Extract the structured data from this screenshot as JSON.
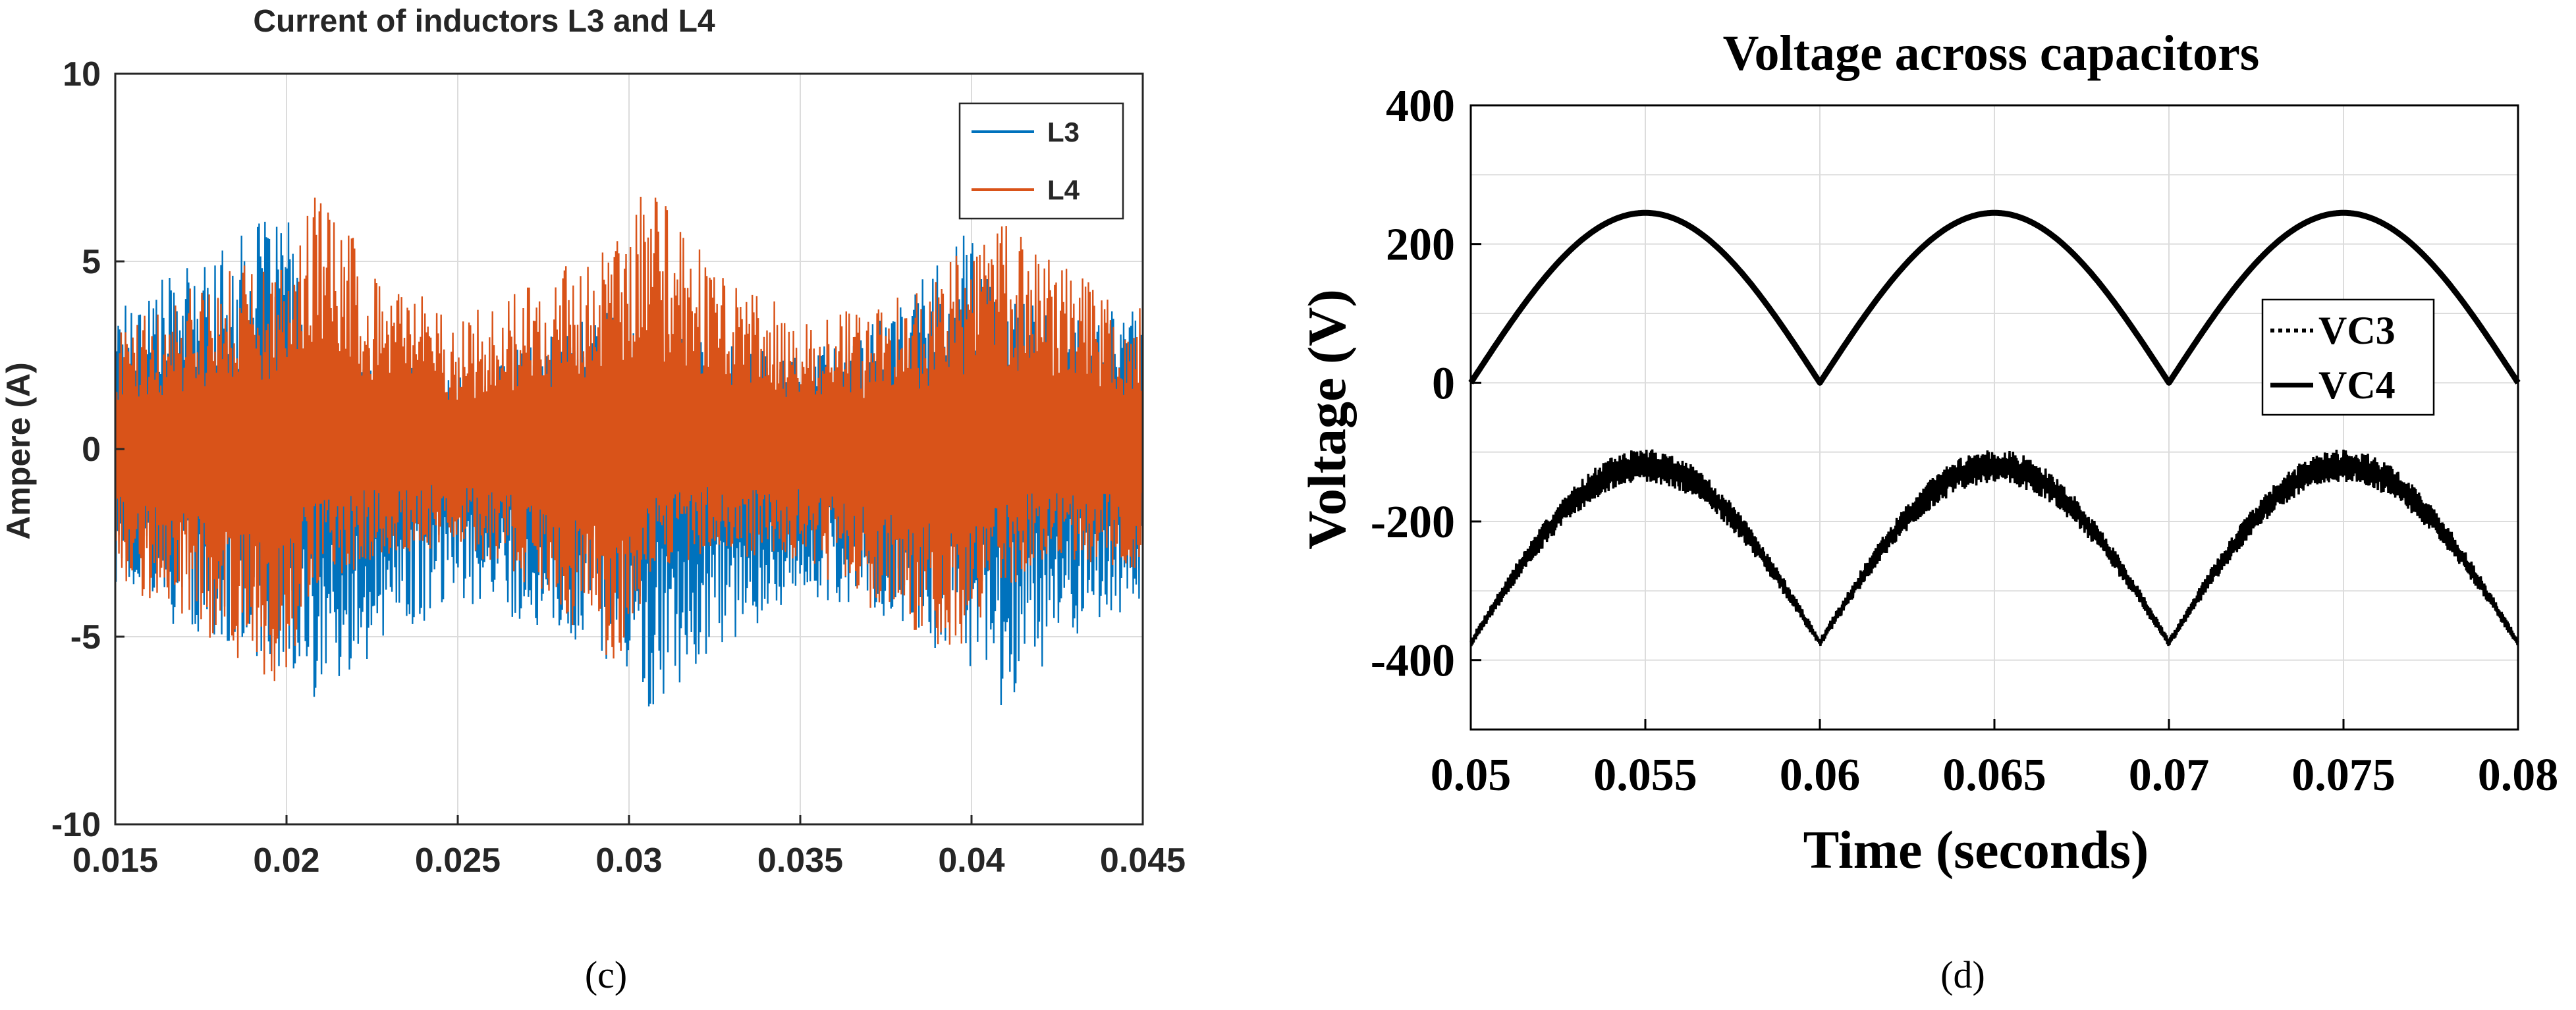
{
  "chart_data": [
    {
      "type": "line",
      "panel_label": "(c)",
      "title": "Current of inductors L3 and L4",
      "xlabel": "",
      "ylabel": "Ampere (A)",
      "xlim": [
        0.015,
        0.045
      ],
      "ylim": [
        -10,
        10
      ],
      "x_ticks": [
        0.015,
        0.02,
        0.025,
        0.03,
        0.035,
        0.04,
        0.045
      ],
      "x_tick_labels": [
        "0.015",
        "0.02",
        "0.025",
        "0.03",
        "0.035",
        "0.04",
        "0.045"
      ],
      "y_ticks": [
        -10,
        -5,
        0,
        5,
        10
      ],
      "y_tick_labels": [
        "-10",
        "-5",
        "0",
        "5",
        "10"
      ],
      "grid": true,
      "legend_position": "top-right",
      "series": [
        {
          "name": "L3",
          "color": "#0072BD",
          "description": "high-frequency ripple current, envelope peaks ~6.5 A / -7.3 A near x = 0.02, 0.03, 0.04"
        },
        {
          "name": "L4",
          "color": "#D95319",
          "description": "high-frequency ripple current, envelope peaks ~7.4 A / -6.5 A near x = 0.02, 0.03, 0.04"
        }
      ],
      "envelope": {
        "x": [
          0.015,
          0.0175,
          0.02,
          0.0205,
          0.0225,
          0.025,
          0.0275,
          0.03,
          0.0305,
          0.0325,
          0.035,
          0.0375,
          0.04,
          0.0405,
          0.0425,
          0.045
        ],
        "L3_max": [
          4.0,
          5.0,
          6.5,
          3.5,
          2.5,
          2.0,
          3.0,
          4.0,
          3.3,
          2.8,
          2.5,
          3.5,
          6.0,
          4.5,
          3.5,
          4.0
        ],
        "L3_min": [
          -4.0,
          -5.0,
          -6.0,
          -7.2,
          -5.5,
          -4.0,
          -4.8,
          -6.0,
          -7.3,
          -5.5,
          -4.0,
          -4.5,
          -6.0,
          -7.3,
          -5.5,
          -4.0
        ],
        "L4_max": [
          3.5,
          4.5,
          5.5,
          7.4,
          5.0,
          3.5,
          4.5,
          6.0,
          7.1,
          5.0,
          3.5,
          4.0,
          5.5,
          6.5,
          5.0,
          3.8
        ],
        "L4_min": [
          -3.5,
          -5.0,
          -6.5,
          -4.0,
          -3.0,
          -2.5,
          -4.0,
          -6.2,
          -3.5,
          -2.8,
          -3.0,
          -4.5,
          -6.0,
          -4.0,
          -3.0,
          -3.2
        ]
      }
    },
    {
      "type": "line",
      "panel_label": "(d)",
      "title": "Voltage across capacitors",
      "xlabel": "Time (seconds)",
      "ylabel": "Voltage (V)",
      "xlim": [
        0.05,
        0.08
      ],
      "ylim": [
        -500,
        400
      ],
      "x_ticks": [
        0.05,
        0.055,
        0.06,
        0.065,
        0.07,
        0.075,
        0.08
      ],
      "x_tick_labels": [
        "0.05",
        "0.055",
        "0.06",
        "0.065",
        "0.07",
        "0.075",
        "0.08"
      ],
      "y_ticks": [
        -400,
        -200,
        0,
        200,
        400
      ],
      "y_tick_labels": [
        "-400",
        "-200",
        "0",
        "200",
        "400"
      ],
      "grid": true,
      "legend_position": "center-right",
      "series": [
        {
          "name": "VC3",
          "style": "dotted",
          "color": "#000000",
          "description": "negative rectified sine with ripple: about -375 V at x = 0.05, 0.06, 0.07, 0.08 and about -120 V (ripple -95 to -145) at x = 0.055, 0.065, 0.075"
        },
        {
          "name": "VC4",
          "style": "solid",
          "color": "#000000",
          "description": "rectified sine: 0 V at x = 0.05, 0.06, 0.07, 0.08 and peak 245 V at x = 0.055, 0.065, 0.075"
        }
      ],
      "model": {
        "VC4_peak": 245,
        "VC3_base": -375,
        "VC3_amplitude": 255,
        "VC3_ripple": 25,
        "period": 0.01
      }
    }
  ]
}
